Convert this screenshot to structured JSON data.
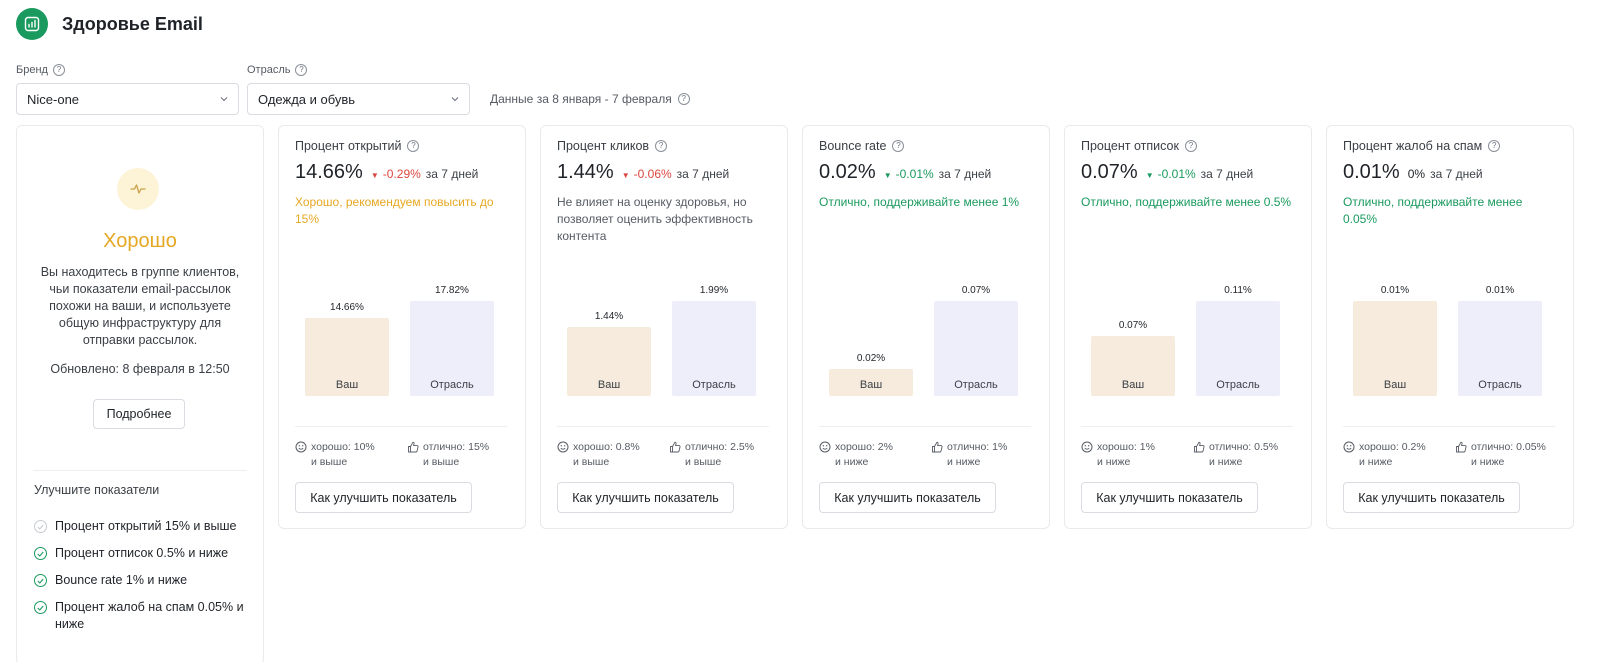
{
  "header": {
    "title": "Здоровье Email",
    "logo_icon": "bar-chart-icon"
  },
  "filters": {
    "brand": {
      "label": "Бренд",
      "value": "Nice-one"
    },
    "industry": {
      "label": "Отрасль",
      "value": "Одежда и обувь"
    },
    "period": "Данные за 8 января - 7 февраля"
  },
  "summary": {
    "status": "Хорошо",
    "status_color": "#e5a823",
    "description": "Вы находитесь в группе клиентов, чьи показатели email-рассылок похожи на ваши, и используете общую инфраструктуру для отправки рассылок.",
    "updated": "Обновлено: 8 февраля в 12:50",
    "more_button": "Подробнее",
    "improve_title": "Улучшите показатели",
    "improve_items": [
      {
        "text": "Процент открытий 15% и выше",
        "done": false
      },
      {
        "text": "Процент отписок 0.5% и ниже",
        "done": true
      },
      {
        "text": "Bounce rate 1% и ниже",
        "done": true
      },
      {
        "text": "Процент жалоб на спам 0.05% и ниже",
        "done": true
      }
    ]
  },
  "labels": {
    "yours": "Ваш",
    "industry": "Отрасль",
    "improve_button": "Как улучшить показатель"
  },
  "colors": {
    "accent_green": "#1a9a5e",
    "negative_red": "#d9473f",
    "warning_orange": "#e5a823",
    "bar_yours": "#f6ebdd",
    "bar_industry": "#eeeefa"
  },
  "metrics": [
    {
      "title": "Процент открытий",
      "value": "14.66%",
      "delta": "-0.29%",
      "delta_dir": "down",
      "delta_color": "red",
      "delta_suffix": "за 7 дней",
      "note": "Хорошо, рекомендуем повысить до 15%",
      "note_color": "orange",
      "yours_label": "14.66%",
      "industry_label": "17.82%",
      "yours_value": 14.66,
      "industry_value": 17.82,
      "good_label": "хорошо: 10%",
      "good_sub": "и выше",
      "excellent_label": "отлично: 15%",
      "excellent_sub": "и выше"
    },
    {
      "title": "Процент кликов",
      "value": "1.44%",
      "delta": "-0.06%",
      "delta_dir": "down",
      "delta_color": "red",
      "delta_suffix": "за 7 дней",
      "note": "Не влияет на оценку здоровья, но позволяет оценить эффективность контента",
      "note_color": "grey",
      "yours_label": "1.44%",
      "industry_label": "1.99%",
      "yours_value": 1.44,
      "industry_value": 1.99,
      "good_label": "хорошо: 0.8%",
      "good_sub": "и выше",
      "excellent_label": "отлично: 2.5%",
      "excellent_sub": "и выше"
    },
    {
      "title": "Bounce rate",
      "value": "0.02%",
      "delta": "-0.01%",
      "delta_dir": "down",
      "delta_color": "green",
      "delta_suffix": "за 7 дней",
      "note": "Отлично, поддерживайте менее 1%",
      "note_color": "green",
      "yours_label": "0.02%",
      "industry_label": "0.07%",
      "yours_value": 0.02,
      "industry_value": 0.07,
      "good_label": "хорошо: 2%",
      "good_sub": "и ниже",
      "excellent_label": "отлично: 1%",
      "excellent_sub": "и ниже"
    },
    {
      "title": "Процент отписок",
      "value": "0.07%",
      "delta": "-0.01%",
      "delta_dir": "down",
      "delta_color": "green",
      "delta_suffix": "за 7 дней",
      "note": "Отлично, поддерживайте менее 0.5%",
      "note_color": "green",
      "yours_label": "0.07%",
      "industry_label": "0.11%",
      "yours_value": 0.07,
      "industry_value": 0.11,
      "good_label": "хорошо: 1%",
      "good_sub": "и ниже",
      "excellent_label": "отлично: 0.5%",
      "excellent_sub": "и ниже"
    },
    {
      "title": "Процент жалоб на спам",
      "value": "0.01%",
      "delta": "0%",
      "delta_dir": "none",
      "delta_color": "neutral",
      "delta_suffix": "за 7 дней",
      "note": "Отлично, поддерживайте менее 0.05%",
      "note_color": "green",
      "yours_label": "0.01%",
      "industry_label": "0.01%",
      "yours_value": 0.01,
      "industry_value": 0.01,
      "good_label": "хорошо: 0.2%",
      "good_sub": "и ниже",
      "excellent_label": "отлично: 0.05%",
      "excellent_sub": "и ниже"
    }
  ]
}
